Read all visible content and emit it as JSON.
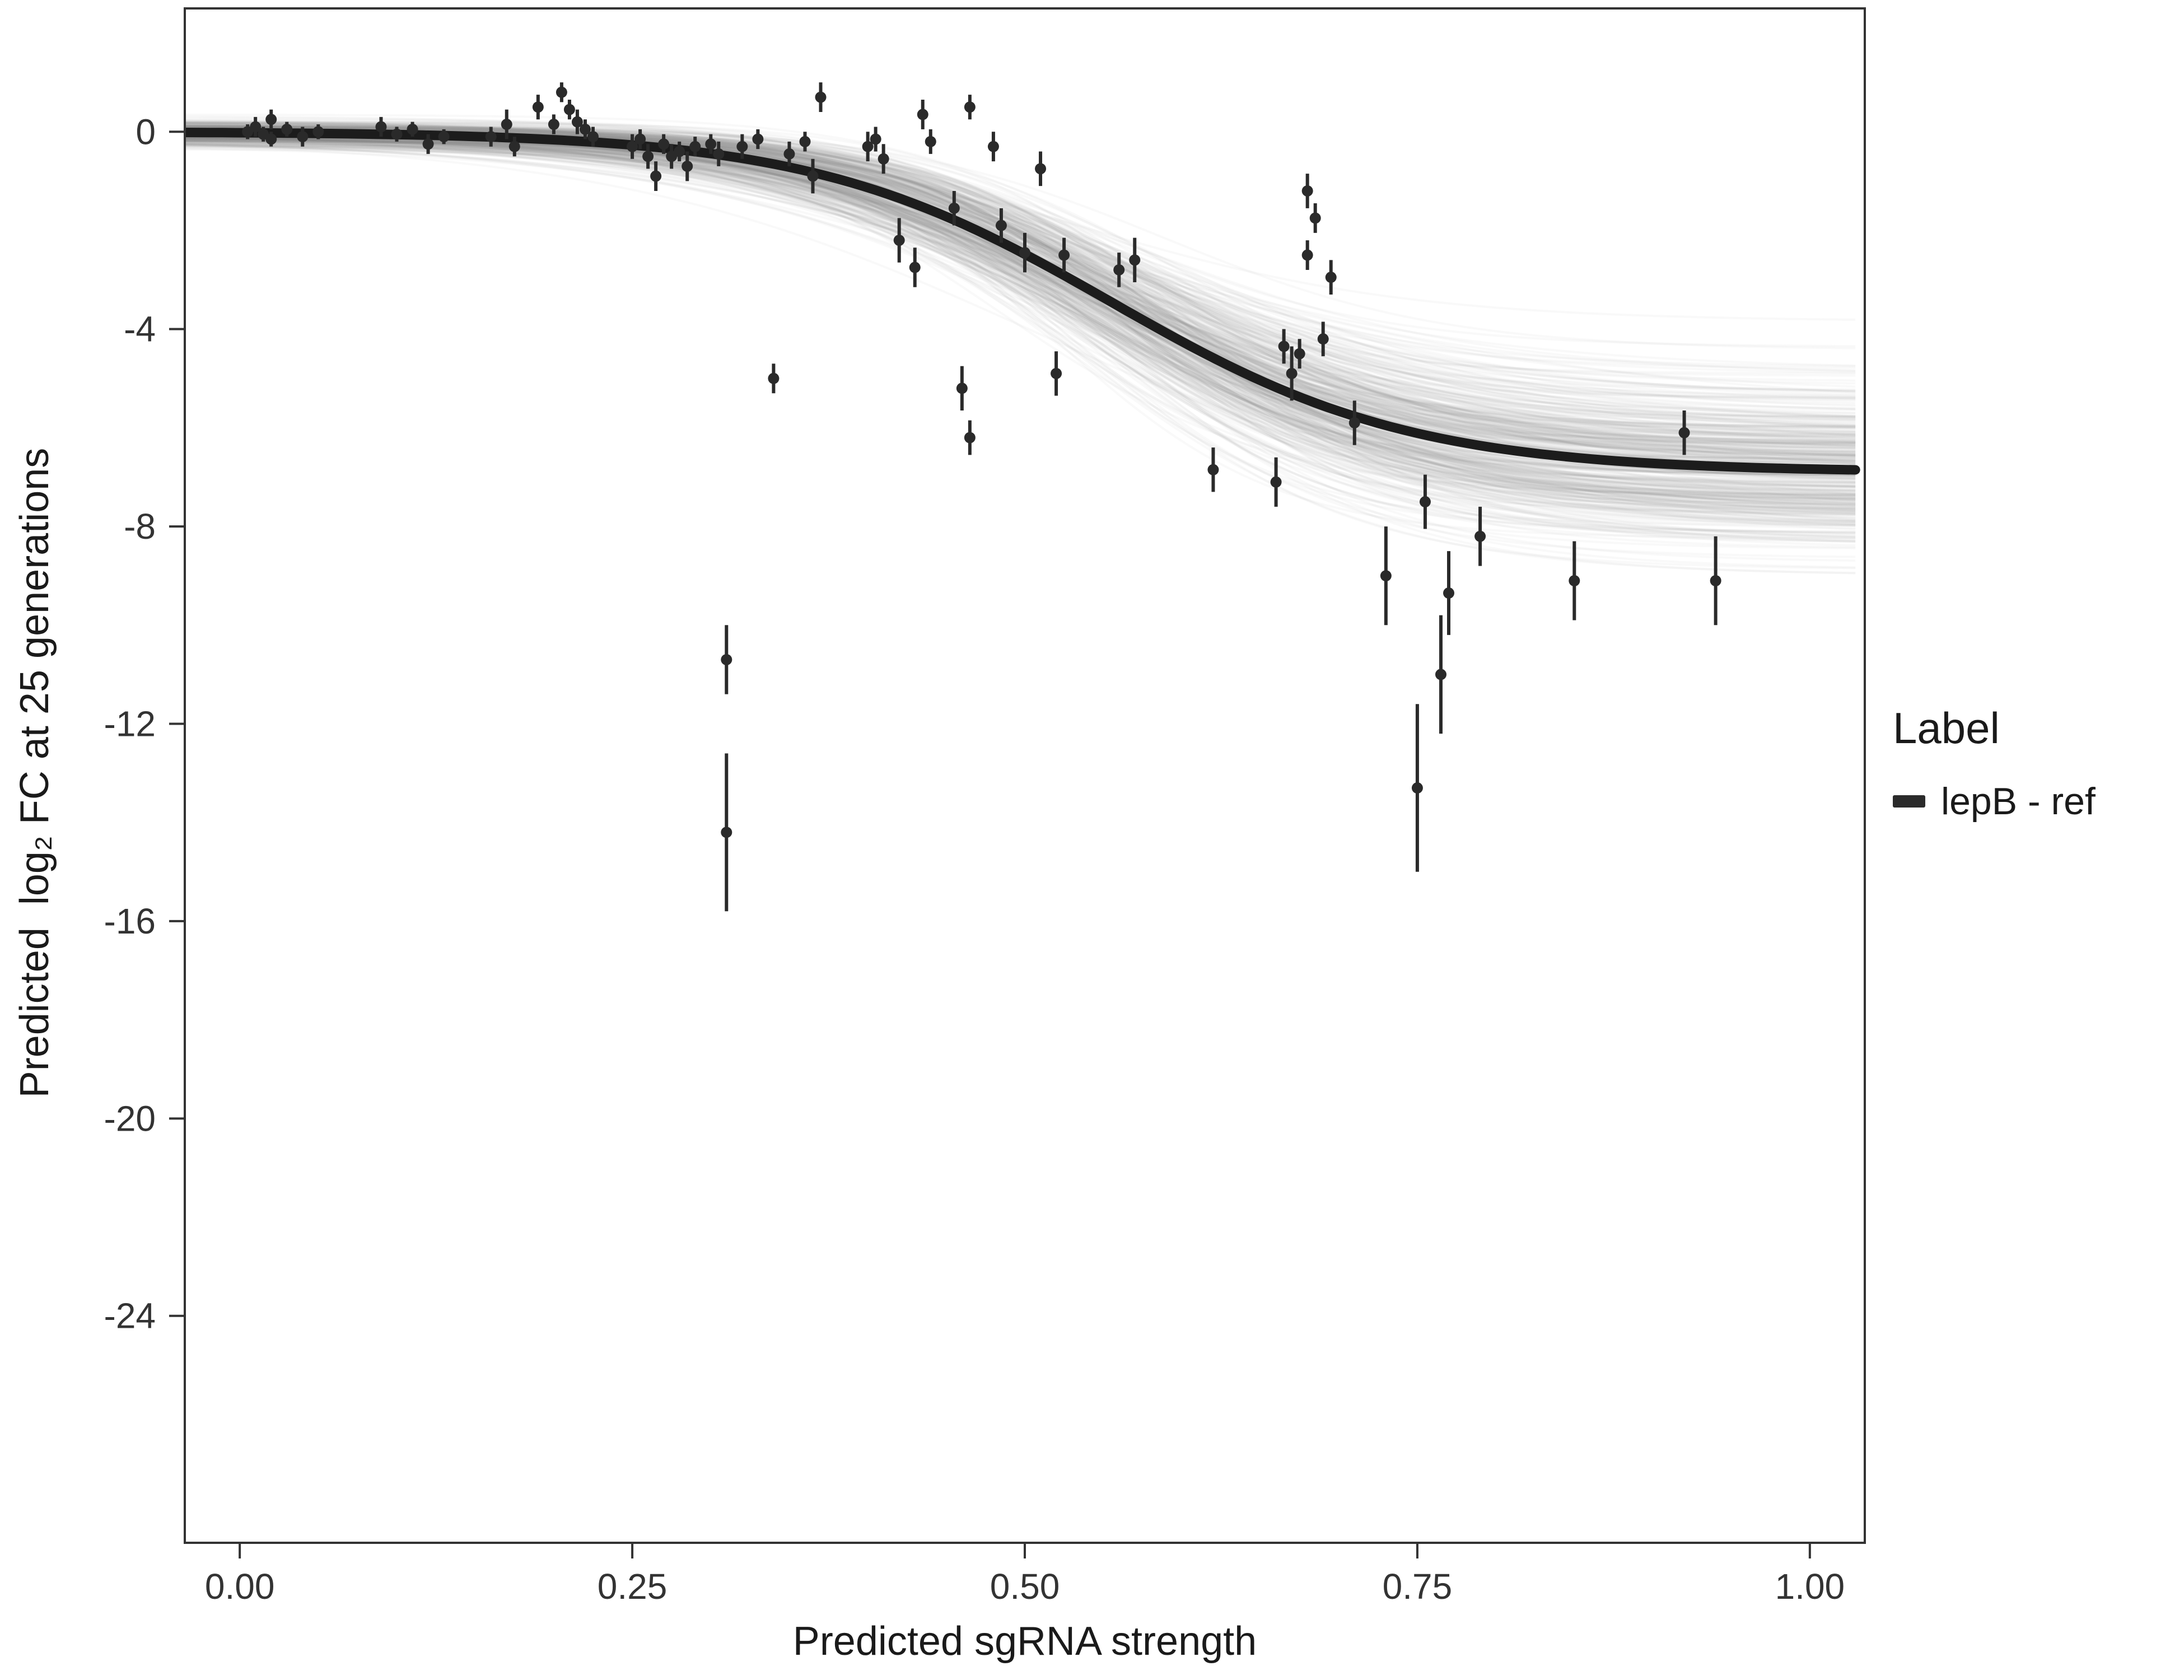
{
  "chart_data": {
    "type": "scatter",
    "title": "",
    "xlabel": "Predicted sgRNA strength",
    "ylabel": "Predicted  log₂ FC at 25 generations",
    "xlim": [
      -0.035,
      1.035
    ],
    "ylim": [
      -28.6,
      2.5
    ],
    "x_ticks": [
      0,
      0.25,
      0.5,
      0.75,
      1.0
    ],
    "x_tick_labels": [
      "0.00",
      "0.25",
      "0.50",
      "0.75",
      "1.00"
    ],
    "y_ticks": [
      0,
      -4,
      -8,
      -12,
      -16,
      -20,
      -24
    ],
    "y_tick_labels": [
      "0",
      "-4",
      "-8",
      "-12",
      "-16",
      "-20",
      "-24"
    ],
    "grid": "off",
    "legend_position": "right",
    "legend": {
      "title": "Label",
      "items": [
        {
          "label": "lepB - ref",
          "color": "#2b2b2b"
        }
      ]
    },
    "fit_curve": {
      "type": "sigmoid",
      "L": -6.9,
      "x0": 0.555,
      "k": 10.5,
      "a": 0,
      "color": "#1c1c1c",
      "width": 17
    },
    "posterior_band": {
      "n_curves": 420,
      "color": "#8c8c8c",
      "opacity": 0.05,
      "width": 4,
      "sd_L": 0.9,
      "sd_x0": 0.022,
      "sd_k": 1.8,
      "sd_a": 0.12,
      "seed": 42
    },
    "point_style": {
      "color": "#2a2a2a",
      "radius": 10,
      "errorbar_width": 6
    },
    "points": [
      [
        0.005,
        0.0,
        0.15
      ],
      [
        0.01,
        0.1,
        0.2
      ],
      [
        0.015,
        -0.05,
        0.15
      ],
      [
        0.02,
        0.25,
        0.2
      ],
      [
        0.02,
        -0.15,
        0.15
      ],
      [
        0.03,
        0.05,
        0.15
      ],
      [
        0.04,
        -0.1,
        0.2
      ],
      [
        0.05,
        0.0,
        0.15
      ],
      [
        0.09,
        0.1,
        0.2
      ],
      [
        0.1,
        -0.05,
        0.15
      ],
      [
        0.11,
        0.05,
        0.15
      ],
      [
        0.12,
        -0.25,
        0.2
      ],
      [
        0.13,
        -0.1,
        0.15
      ],
      [
        0.16,
        -0.1,
        0.2
      ],
      [
        0.17,
        0.15,
        0.3
      ],
      [
        0.175,
        -0.3,
        0.2
      ],
      [
        0.19,
        0.5,
        0.25
      ],
      [
        0.2,
        0.15,
        0.2
      ],
      [
        0.205,
        0.8,
        0.2
      ],
      [
        0.21,
        0.45,
        0.2
      ],
      [
        0.215,
        0.2,
        0.25
      ],
      [
        0.22,
        0.05,
        0.2
      ],
      [
        0.225,
        -0.1,
        0.2
      ],
      [
        0.25,
        -0.3,
        0.25
      ],
      [
        0.255,
        -0.15,
        0.2
      ],
      [
        0.26,
        -0.5,
        0.25
      ],
      [
        0.265,
        -0.9,
        0.3
      ],
      [
        0.27,
        -0.25,
        0.2
      ],
      [
        0.275,
        -0.5,
        0.25
      ],
      [
        0.28,
        -0.4,
        0.2
      ],
      [
        0.285,
        -0.7,
        0.3
      ],
      [
        0.29,
        -0.3,
        0.2
      ],
      [
        0.3,
        -0.25,
        0.2
      ],
      [
        0.305,
        -0.45,
        0.25
      ],
      [
        0.31,
        -10.7,
        0.7
      ],
      [
        0.31,
        -14.2,
        1.6
      ],
      [
        0.32,
        -0.3,
        0.25
      ],
      [
        0.33,
        -0.15,
        0.2
      ],
      [
        0.34,
        -5.0,
        0.3
      ],
      [
        0.35,
        -0.45,
        0.25
      ],
      [
        0.36,
        -0.2,
        0.2
      ],
      [
        0.365,
        -0.9,
        0.35
      ],
      [
        0.37,
        0.7,
        0.3
      ],
      [
        0.4,
        -0.3,
        0.3
      ],
      [
        0.405,
        -0.15,
        0.25
      ],
      [
        0.41,
        -0.55,
        0.3
      ],
      [
        0.42,
        -2.2,
        0.45
      ],
      [
        0.43,
        -2.75,
        0.4
      ],
      [
        0.435,
        0.35,
        0.3
      ],
      [
        0.44,
        -0.2,
        0.25
      ],
      [
        0.455,
        -1.55,
        0.35
      ],
      [
        0.46,
        -5.2,
        0.45
      ],
      [
        0.465,
        -6.2,
        0.35
      ],
      [
        0.465,
        0.5,
        0.25
      ],
      [
        0.48,
        -0.3,
        0.3
      ],
      [
        0.485,
        -1.9,
        0.35
      ],
      [
        0.5,
        -2.45,
        0.4
      ],
      [
        0.51,
        -0.75,
        0.35
      ],
      [
        0.52,
        -4.9,
        0.45
      ],
      [
        0.525,
        -2.5,
        0.35
      ],
      [
        0.56,
        -2.8,
        0.35
      ],
      [
        0.57,
        -2.6,
        0.45
      ],
      [
        0.62,
        -6.85,
        0.45
      ],
      [
        0.66,
        -7.1,
        0.5
      ],
      [
        0.665,
        -4.35,
        0.35
      ],
      [
        0.67,
        -4.9,
        0.55
      ],
      [
        0.675,
        -4.5,
        0.3
      ],
      [
        0.68,
        -1.2,
        0.35
      ],
      [
        0.68,
        -2.5,
        0.3
      ],
      [
        0.685,
        -1.75,
        0.3
      ],
      [
        0.69,
        -4.2,
        0.35
      ],
      [
        0.695,
        -2.95,
        0.35
      ],
      [
        0.71,
        -5.9,
        0.45
      ],
      [
        0.73,
        -9.0,
        1.0
      ],
      [
        0.75,
        -13.3,
        1.7
      ],
      [
        0.755,
        -7.5,
        0.55
      ],
      [
        0.765,
        -11.0,
        1.2
      ],
      [
        0.77,
        -9.35,
        0.85
      ],
      [
        0.79,
        -8.2,
        0.6
      ],
      [
        0.85,
        -9.1,
        0.8
      ],
      [
        0.92,
        -6.1,
        0.45
      ],
      [
        0.94,
        -9.1,
        0.9
      ]
    ]
  }
}
